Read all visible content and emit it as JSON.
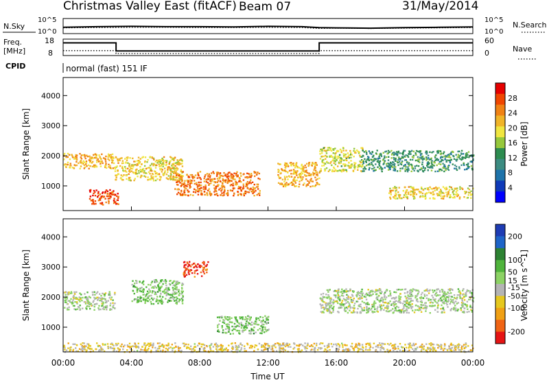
{
  "header": {
    "title": "Christmas Valley East (fitACF)",
    "beam": "Beam 07",
    "date": "31/May/2014"
  },
  "colors": {
    "power_scale": [
      "#0000ff",
      "#0f3ab9",
      "#1e73aa",
      "#3c8c82",
      "#2d8c50",
      "#96c83c",
      "#f0e640",
      "#f0b428",
      "#f08214",
      "#f04600",
      "#e60000"
    ],
    "velocity_scale": [
      "#1e3cb4",
      "#1e64c8",
      "#2d8232",
      "#50b43c",
      "#8cd264",
      "#b4b4b4",
      "#e6c81e",
      "#f0a014",
      "#f06414",
      "#e61414"
    ],
    "ground_scatter": "#b4b4b4"
  },
  "chart_data": [
    {
      "type": "line",
      "panel": "noise",
      "left_label": "N.Sky",
      "left_ticks": [
        "10^5",
        "10^0"
      ],
      "right_label": "N.Search",
      "right_ticks": [
        "10^5",
        "10^0"
      ],
      "x": [
        0,
        2,
        4,
        6,
        8,
        10,
        12,
        14,
        15,
        16,
        18,
        20,
        22,
        24
      ],
      "series": [
        {
          "values": [
            2.1,
            2.3,
            2.4,
            2.3,
            2.3,
            2.2,
            2.4,
            2.3,
            2.0,
            1.9,
            1.8,
            2.0,
            2.1,
            2.2
          ]
        },
        {
          "values": [
            1.9,
            2.0,
            2.1,
            2.1,
            2.0,
            2.0,
            2.1,
            2.0,
            1.7,
            1.8,
            1.7,
            1.8,
            1.9,
            2.0
          ]
        }
      ],
      "ylim": [
        0,
        5
      ]
    },
    {
      "type": "line",
      "panel": "frequency",
      "left_label_lines": [
        "Freq.",
        "[MHz]"
      ],
      "left_ticks": [
        18,
        8
      ],
      "right_label": "Nave",
      "right_ticks": [
        60,
        0
      ],
      "x": [
        0,
        3.1,
        3.1,
        15.0,
        15.0,
        24
      ],
      "series": [
        {
          "values": [
            15.7,
            15.7,
            10.8,
            10.8,
            15.7,
            15.7
          ]
        },
        {
          "values": [
            11.0,
            11.0,
            9.2,
            9.2,
            11.0,
            11.0
          ]
        }
      ],
      "ylim": [
        8,
        18
      ]
    },
    {
      "type": "table",
      "panel": "cpid",
      "label": "CPID",
      "value": "normal (fast) 151 IF"
    },
    {
      "type": "heatmap",
      "panel": "power",
      "ylabel": "Slant Range [km]",
      "yticks": [
        1000,
        2000,
        3000,
        4000
      ],
      "ylim": [
        180,
        4600
      ],
      "xlim": [
        0,
        24
      ],
      "colorbar": {
        "label": "Power [dB]",
        "ticks": [
          4,
          8,
          12,
          16,
          20,
          24,
          28
        ],
        "range": [
          0,
          32
        ]
      },
      "regions": [
        {
          "x": [
            0,
            3
          ],
          "range": [
            1600,
            2100
          ],
          "value": 22
        },
        {
          "x": [
            1.5,
            3.2
          ],
          "range": [
            400,
            900
          ],
          "value": 28
        },
        {
          "x": [
            3,
            7
          ],
          "range": [
            1200,
            2000
          ],
          "value": 20
        },
        {
          "x": [
            6.5,
            11.5
          ],
          "range": [
            700,
            1500
          ],
          "value": 25
        },
        {
          "x": [
            12.5,
            15
          ],
          "range": [
            1000,
            1800
          ],
          "value": 22
        },
        {
          "x": [
            15,
            17.5
          ],
          "range": [
            1500,
            2300
          ],
          "value": 18
        },
        {
          "x": [
            17.5,
            24
          ],
          "range": [
            1500,
            2200
          ],
          "value": 12
        },
        {
          "x": [
            19,
            24
          ],
          "range": [
            600,
            1000
          ],
          "value": 20
        }
      ]
    },
    {
      "type": "heatmap",
      "panel": "velocity",
      "ylabel": "Slant Range [km]",
      "yticks": [
        1000,
        2000,
        3000,
        4000
      ],
      "ylim": [
        180,
        4600
      ],
      "xlim": [
        0,
        24
      ],
      "xticks": [
        "00:00",
        "04:00",
        "08:00",
        "12:00",
        "16:00",
        "20:00",
        "00:00"
      ],
      "xlabel": "Time UT",
      "colorbar": {
        "label": "Velocity [m s^-1]",
        "ticks": [
          200,
          100,
          50,
          15,
          -15,
          -50,
          -100,
          -200
        ],
        "range": [
          -250,
          250
        ]
      },
      "regions": [
        {
          "x": [
            0,
            3
          ],
          "range": [
            1600,
            2200
          ],
          "value": 0
        },
        {
          "x": [
            4,
            7
          ],
          "range": [
            1800,
            2600
          ],
          "value": 40
        },
        {
          "x": [
            7,
            8.5
          ],
          "range": [
            2700,
            3200
          ],
          "value": -200
        },
        {
          "x": [
            9,
            12
          ],
          "range": [
            800,
            1400
          ],
          "value": 40
        },
        {
          "x": [
            15,
            24
          ],
          "range": [
            1500,
            2300
          ],
          "value": 0
        },
        {
          "x": [
            0,
            24
          ],
          "range": [
            200,
            500
          ],
          "value": -60
        }
      ]
    }
  ]
}
